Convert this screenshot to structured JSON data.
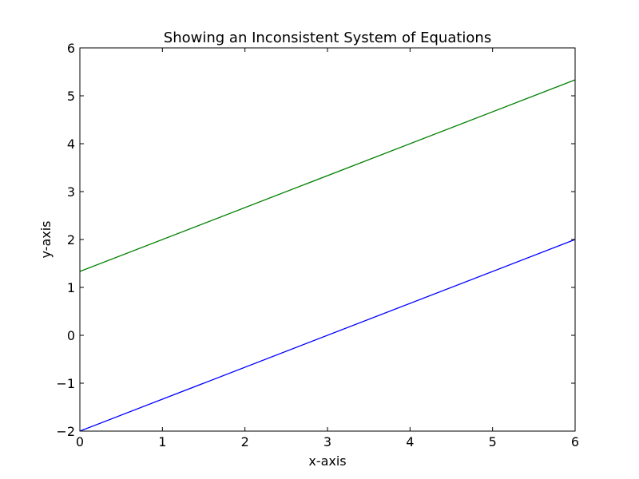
{
  "chart_data": {
    "type": "line",
    "title": "Showing an Inconsistent System of Equations",
    "xlabel": "x-axis",
    "ylabel": "y-axis",
    "xlim": [
      0,
      6
    ],
    "ylim": [
      -2,
      6
    ],
    "x_ticks": [
      0,
      1,
      2,
      3,
      4,
      5,
      6
    ],
    "y_ticks": [
      -2,
      -1,
      0,
      1,
      2,
      3,
      4,
      5,
      6
    ],
    "x_tick_labels": [
      "0",
      "1",
      "2",
      "3",
      "4",
      "5",
      "6"
    ],
    "y_tick_labels": [
      "−2",
      "−1",
      "0",
      "1",
      "2",
      "3",
      "4",
      "5",
      "6"
    ],
    "grid": false,
    "series": [
      {
        "color": "#0000ff",
        "x": [
          0,
          6
        ],
        "y": [
          -2,
          2
        ]
      },
      {
        "color": "#008000",
        "x": [
          0,
          6
        ],
        "y": [
          1.333,
          5.333
        ]
      }
    ]
  }
}
